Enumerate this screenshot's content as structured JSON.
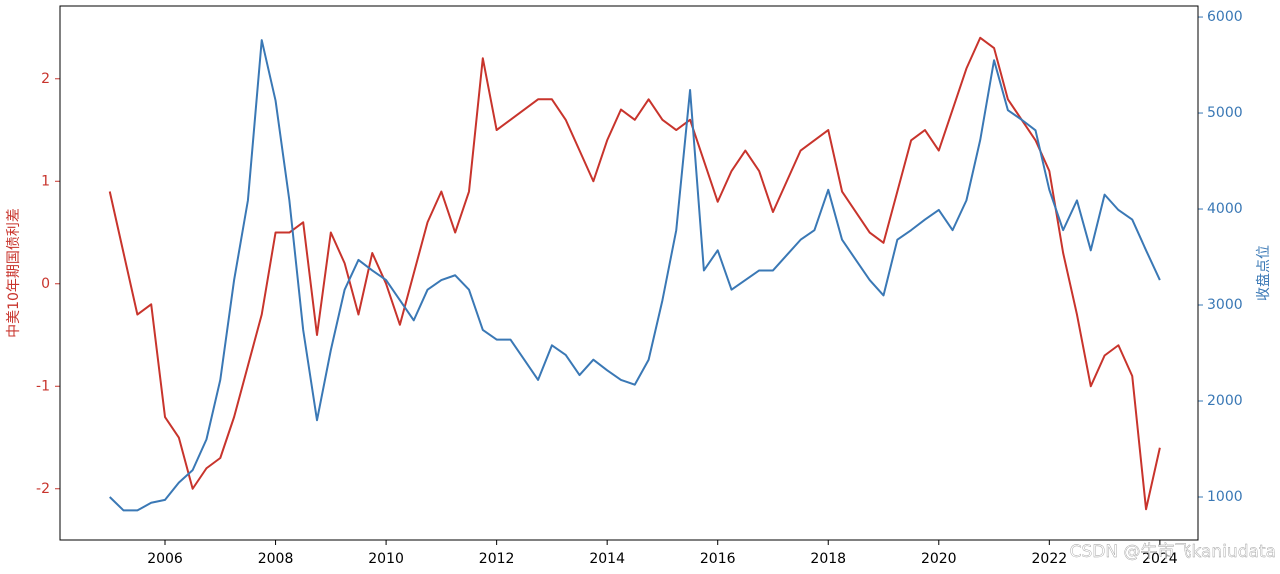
{
  "chart_data": {
    "type": "line",
    "ylabel": "中美10年期国债利差",
    "y2label": "收盘点位",
    "watermark": "CSDN @牛市飞kaniudata",
    "x": [
      2005.0,
      2005.25,
      2005.5,
      2005.75,
      2006.0,
      2006.25,
      2006.5,
      2006.75,
      2007.0,
      2007.25,
      2007.5,
      2007.75,
      2008.0,
      2008.25,
      2008.5,
      2008.75,
      2009.0,
      2009.25,
      2009.5,
      2009.75,
      2010.0,
      2010.25,
      2010.5,
      2010.75,
      2011.0,
      2011.25,
      2011.5,
      2011.75,
      2012.0,
      2012.25,
      2012.5,
      2012.75,
      2013.0,
      2013.25,
      2013.5,
      2013.75,
      2014.0,
      2014.25,
      2014.5,
      2014.75,
      2015.0,
      2015.25,
      2015.5,
      2015.75,
      2016.0,
      2016.25,
      2016.5,
      2016.75,
      2017.0,
      2017.25,
      2017.5,
      2017.75,
      2018.0,
      2018.25,
      2018.5,
      2018.75,
      2019.0,
      2019.25,
      2019.5,
      2019.75,
      2020.0,
      2020.25,
      2020.5,
      2020.75,
      2021.0,
      2021.25,
      2021.5,
      2021.75,
      2022.0,
      2022.25,
      2022.5,
      2022.75,
      2023.0,
      2023.25,
      2023.5,
      2023.75,
      2024.0
    ],
    "series": [
      {
        "color": "#c8342c",
        "values": [
          0.9,
          0.3,
          -0.3,
          -0.2,
          -1.3,
          -1.5,
          -2.0,
          -1.8,
          -1.7,
          -1.3,
          -0.8,
          -0.3,
          0.5,
          0.5,
          0.6,
          -0.5,
          0.5,
          0.2,
          -0.3,
          0.3,
          0.0,
          -0.4,
          0.1,
          0.6,
          0.9,
          0.5,
          0.9,
          2.2,
          1.5,
          1.6,
          1.7,
          1.8,
          1.8,
          1.6,
          1.3,
          1.0,
          1.4,
          1.7,
          1.6,
          1.8,
          1.6,
          1.5,
          1.6,
          1.2,
          0.8,
          1.1,
          1.3,
          1.1,
          0.7,
          1.0,
          1.3,
          1.4,
          1.5,
          0.9,
          0.7,
          0.5,
          0.4,
          0.9,
          1.4,
          1.5,
          1.3,
          1.7,
          2.1,
          2.4,
          2.3,
          1.8,
          1.6,
          1.4,
          1.1,
          0.3,
          -0.3,
          -1.0,
          -0.7,
          -0.6,
          -0.9,
          -2.2,
          -1.6
        ]
      },
      {
        "color": "#3a78b5",
        "axis": "y2",
        "values": [
          1000,
          860,
          860,
          940,
          970,
          1150,
          1280,
          1600,
          2220,
          3260,
          4090,
          5760,
          5130,
          4090,
          2740,
          1800,
          2530,
          3160,
          3470,
          3360,
          3260,
          3050,
          2840,
          3160,
          3260,
          3310,
          3160,
          2740,
          2640,
          2640,
          2430,
          2220,
          2580,
          2480,
          2270,
          2430,
          2320,
          2220,
          2170,
          2430,
          3050,
          3780,
          5240,
          3360,
          3570,
          3160,
          3260,
          3360,
          3360,
          3520,
          3680,
          3780,
          4200,
          3680,
          3470,
          3260,
          3100,
          3680,
          3780,
          3890,
          3990,
          3780,
          4090,
          4720,
          5550,
          5030,
          4930,
          4820,
          4200,
          3780,
          4090,
          3570,
          4150,
          3990,
          3890,
          3570,
          3260
        ]
      }
    ],
    "xlim": [
      2004.1,
      2024.69
    ],
    "xticks": [
      2006,
      2008,
      2010,
      2012,
      2014,
      2016,
      2018,
      2020,
      2022,
      2024
    ],
    "ylim": [
      -2.5,
      2.71
    ],
    "yticks": [
      -2,
      -1,
      0,
      1,
      2
    ],
    "y2lim": [
      552,
      6115
    ],
    "y2ticks": [
      1000,
      2000,
      3000,
      4000,
      5000,
      6000
    ]
  }
}
